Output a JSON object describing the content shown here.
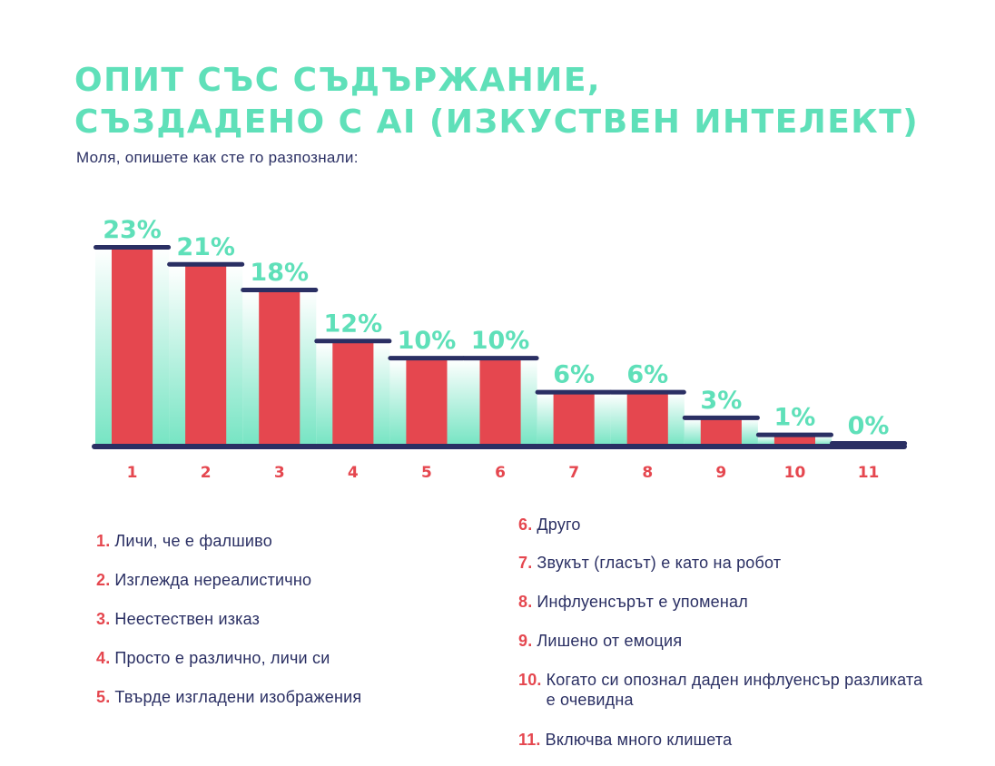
{
  "header": {
    "title_line1": "ОПИТ СЪС СЪДЪРЖАНИЕ,",
    "title_line2": "СЪЗДАДЕНО С AI (ИЗКУСТВЕН ИНТЕЛЕКТ)",
    "subtitle": "Моля, опишете как сте го разпознали:"
  },
  "colors": {
    "accent": "#5fe0b9",
    "bar": "#e5474f",
    "navy": "#2a2f63"
  },
  "chart_data": {
    "type": "bar",
    "categories": [
      "1",
      "2",
      "3",
      "4",
      "5",
      "6",
      "7",
      "8",
      "9",
      "10",
      "11"
    ],
    "values": [
      23,
      21,
      18,
      12,
      10,
      10,
      6,
      6,
      3,
      1,
      0
    ],
    "value_labels": [
      "23%",
      "21%",
      "18%",
      "12%",
      "10%",
      "10%",
      "6%",
      "6%",
      "3%",
      "1%",
      "0%"
    ],
    "unit": "%",
    "title": "ОПИТ СЪС СЪДЪРЖАНИЕ, СЪЗДАДЕНО С AI (ИЗКУСТВЕН ИНТЕЛЕКТ)",
    "xlabel": "",
    "ylabel": "",
    "ylim": [
      0,
      23
    ],
    "grid": false
  },
  "legend": {
    "left": [
      {
        "num": "1.",
        "text": "Личи, че е фалшиво"
      },
      {
        "num": "2.",
        "text": "Изглежда нереалистично"
      },
      {
        "num": "3.",
        "text": "Неестествен изказ"
      },
      {
        "num": "4.",
        "text": "Просто е различно, личи си"
      },
      {
        "num": "5.",
        "text": "Твърде изгладени изображения"
      }
    ],
    "right": [
      {
        "num": "6.",
        "text": "Друго"
      },
      {
        "num": "7.",
        "text": "Звукът (гласът) е като на робот"
      },
      {
        "num": "8.",
        "text": "Инфлуенсърът е упоменал"
      },
      {
        "num": "9.",
        "text": "Лишено от емоция"
      },
      {
        "num": "10.",
        "text": "Когато си опознал даден инфлуенсър разликата е очевидна"
      },
      {
        "num": "11.",
        "text": "Включва много клишета"
      }
    ]
  }
}
